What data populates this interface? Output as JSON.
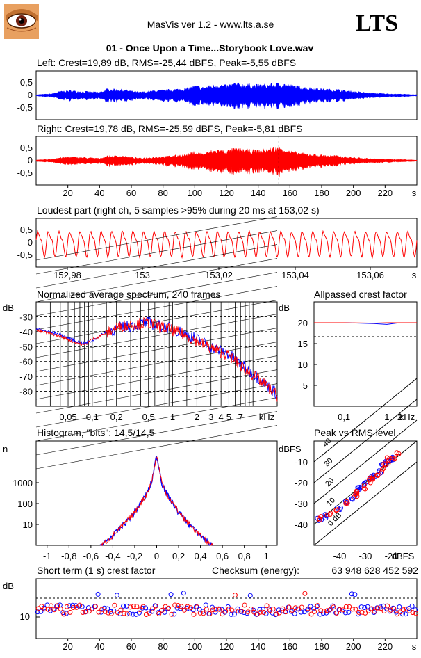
{
  "header": {
    "app_title": "MasVis ver 1.2 - www.lts.a.se",
    "logo_text": "LTS",
    "file_title": "01 - Once Upon a Time...Storybook Love.wav",
    "avatar_icon": "eye-avatar-icon"
  },
  "colors": {
    "left": "#0000ff",
    "right": "#ff0000",
    "axis": "#000000"
  },
  "panels": {
    "left": {
      "title": "Left: Crest=19,89 dB, RMS=-25,44 dBFS, Peak=-5,55 dBFS",
      "yticks": [
        "0,5",
        "0",
        "-0,5"
      ]
    },
    "right": {
      "title": "Right: Crest=19,78 dB, RMS=-25,59 dBFS, Peak=-5,81 dBFS",
      "yticks": [
        "0,5",
        "0",
        "-0,5"
      ],
      "xticks": [
        "20",
        "40",
        "60",
        "80",
        "100",
        "120",
        "140",
        "160",
        "180",
        "200",
        "220",
        "s"
      ]
    },
    "loudest": {
      "title": "Loudest part (right ch, 5 samples >95% during 20 ms at 153,02 s)",
      "yticks": [
        "0,5",
        "0",
        "-0,5"
      ],
      "xticks": [
        "152,98",
        "153",
        "153,02",
        "153,04",
        "153,06",
        "s"
      ]
    },
    "spectrum": {
      "title": "Normalized average spectrum, 240 frames",
      "ylabel": "dB",
      "yticks": [
        "-30",
        "-40",
        "-50",
        "-60",
        "-70",
        "-80"
      ],
      "xticks": [
        "0,05",
        "0,1",
        "0,2",
        "0,5",
        "1",
        "2",
        "3",
        "4",
        "5",
        "7",
        "kHz"
      ]
    },
    "allpass": {
      "title": "Allpassed crest factor",
      "ylabel": "dB",
      "yticks": [
        "20",
        "15",
        "10",
        "5"
      ],
      "xticks": [
        "0,1",
        "1",
        "2",
        "kHz"
      ]
    },
    "histogram": {
      "title": "Histogram, \"bits\": 14,5/14,5",
      "ylabel": "n",
      "yticks": [
        "1000",
        "100",
        "10"
      ],
      "xticks": [
        "-1",
        "-0,8",
        "-0,6",
        "-0,4",
        "-0,2",
        "0",
        "0,2",
        "0,4",
        "0,6",
        "0,8",
        "1"
      ]
    },
    "peakrms": {
      "title": "Peak vs RMS level",
      "ylabel": "dBFS",
      "yticks": [
        "-10",
        "-20",
        "-30",
        "-40"
      ],
      "xticks": [
        "-40",
        "-30",
        "-20",
        "dBFS"
      ],
      "diag_labels": [
        "40",
        "30",
        "20",
        "10",
        "0 dB"
      ]
    },
    "shortcrest": {
      "title": "Short term (1 s) crest factor",
      "checksum_label": "Checksum (energy):",
      "checksum_value": "63 948 628 452 592",
      "ylabel": "dB",
      "yticks": [
        "10"
      ],
      "xticks": [
        "20",
        "40",
        "60",
        "80",
        "100",
        "120",
        "140",
        "160",
        "180",
        "200",
        "220",
        "s"
      ]
    }
  },
  "chart_data": [
    {
      "type": "line",
      "title": "Left: Crest=19,89 dB, RMS=-25,44 dBFS, Peak=-5,55 dBFS",
      "xlim": [
        0,
        240
      ],
      "ylim": [
        -1,
        1
      ],
      "envelope_series": [
        {
          "name": "left",
          "t": [
            0,
            10,
            15,
            20,
            30,
            40,
            45,
            55,
            65,
            75,
            85,
            95,
            100,
            105,
            110,
            115,
            120,
            125,
            130,
            140,
            150,
            155,
            160,
            165,
            170,
            180,
            190,
            200,
            210,
            220,
            230,
            240
          ],
          "amp": [
            0.02,
            0.05,
            0.12,
            0.15,
            0.12,
            0.1,
            0.2,
            0.18,
            0.1,
            0.15,
            0.18,
            0.22,
            0.3,
            0.25,
            0.3,
            0.35,
            0.3,
            0.38,
            0.35,
            0.32,
            0.36,
            0.38,
            0.32,
            0.28,
            0.25,
            0.2,
            0.18,
            0.12,
            0.08,
            0.05,
            0.04,
            0.02
          ]
        }
      ]
    },
    {
      "type": "line",
      "title": "Right: Crest=19,78 dB, RMS=-25,59 dBFS, Peak=-5,81 dBFS",
      "xlim": [
        0,
        240
      ],
      "ylim": [
        -1,
        1
      ],
      "marker_x": 153.02,
      "envelope_series": [
        {
          "name": "right",
          "t": [
            0,
            10,
            15,
            20,
            30,
            40,
            45,
            55,
            65,
            75,
            85,
            95,
            100,
            105,
            110,
            115,
            120,
            125,
            130,
            140,
            150,
            155,
            160,
            165,
            170,
            180,
            190,
            200,
            210,
            220,
            230,
            240
          ],
          "amp": [
            0.02,
            0.05,
            0.1,
            0.12,
            0.1,
            0.08,
            0.15,
            0.15,
            0.08,
            0.12,
            0.15,
            0.2,
            0.28,
            0.22,
            0.3,
            0.35,
            0.3,
            0.38,
            0.35,
            0.32,
            0.4,
            0.42,
            0.3,
            0.25,
            0.22,
            0.18,
            0.15,
            0.1,
            0.07,
            0.05,
            0.04,
            0.02
          ]
        }
      ]
    },
    {
      "type": "line",
      "title": "Loudest part (right ch, 5 samples >95% during 20 ms at 153,02 s)",
      "xlim": [
        152.97,
        153.07
      ],
      "ylim": [
        -1,
        1
      ],
      "oscillation": {
        "amplitude": 0.3,
        "cycles": 36
      }
    },
    {
      "type": "line",
      "title": "Normalized average spectrum, 240 frames",
      "ylabel": "dB",
      "ylim": [
        -90,
        -20
      ],
      "x_scale": "log",
      "xlim_khz": [
        0.02,
        20
      ],
      "series": [
        {
          "name": "left",
          "x_khz": [
            0.02,
            0.04,
            0.06,
            0.08,
            0.1,
            0.15,
            0.2,
            0.3,
            0.5,
            0.7,
            1,
            1.5,
            2,
            3,
            5,
            7,
            10,
            15,
            20
          ],
          "y": [
            -38,
            -42,
            -46,
            -48,
            -46,
            -40,
            -38,
            -36,
            -34,
            -36,
            -38,
            -42,
            -45,
            -50,
            -55,
            -62,
            -68,
            -76,
            -82
          ]
        },
        {
          "name": "right",
          "x_khz": [
            0.02,
            0.04,
            0.06,
            0.08,
            0.1,
            0.15,
            0.2,
            0.3,
            0.5,
            0.7,
            1,
            1.5,
            2,
            3,
            5,
            7,
            10,
            15,
            20
          ],
          "y": [
            -39,
            -43,
            -47,
            -49,
            -45,
            -41,
            -37,
            -35,
            -34,
            -37,
            -39,
            -43,
            -46,
            -51,
            -56,
            -63,
            -69,
            -77,
            -83
          ]
        }
      ]
    },
    {
      "type": "line",
      "title": "Allpassed crest factor",
      "ylabel": "dB",
      "ylim": [
        0,
        25
      ],
      "x_scale": "log",
      "series": [
        {
          "name": "left",
          "x_khz": [
            0.02,
            0.1,
            0.5,
            1,
            2,
            5
          ],
          "y": [
            20,
            20,
            19.8,
            19.6,
            20,
            20
          ]
        },
        {
          "name": "right",
          "x_khz": [
            0.02,
            0.1,
            0.5,
            1,
            2,
            5
          ],
          "y": [
            20,
            20,
            19.9,
            20,
            20,
            20
          ]
        }
      ]
    },
    {
      "type": "line",
      "title": "Histogram, \"bits\": 14,5/14,5",
      "ylabel": "n",
      "y_scale": "log",
      "xlim": [
        -1.1,
        1.1
      ],
      "series": [
        {
          "name": "left",
          "x": [
            -0.5,
            -0.4,
            -0.3,
            -0.2,
            -0.1,
            -0.05,
            0,
            0.05,
            0.1,
            0.2,
            0.3,
            0.4,
            0.5
          ],
          "y": [
            1,
            3,
            10,
            40,
            250,
            900,
            20000,
            900,
            250,
            40,
            10,
            3,
            1
          ]
        }
      ]
    },
    {
      "type": "scatter",
      "title": "Peak vs RMS level",
      "xlabel": "dBFS",
      "ylabel": "dBFS",
      "xlim": [
        -50,
        -10
      ],
      "ylim": [
        -50,
        0
      ],
      "series": [
        {
          "name": "left",
          "points": [
            [
              -48,
              -38
            ],
            [
              -45,
              -36
            ],
            [
              -40,
              -32
            ],
            [
              -38,
              -29
            ],
            [
              -35,
              -27
            ],
            [
              -33,
              -24
            ],
            [
              -32,
              -23
            ],
            [
              -30,
              -20
            ],
            [
              -28,
              -18
            ],
            [
              -27,
              -17
            ],
            [
              -25,
              -15
            ],
            [
              -23,
              -12
            ],
            [
              -22,
              -10
            ],
            [
              -20,
              -9
            ],
            [
              -19,
              -8
            ]
          ]
        },
        {
          "name": "right",
          "points": [
            [
              -47,
              -37
            ],
            [
              -44,
              -35
            ],
            [
              -41,
              -33
            ],
            [
              -37,
              -29
            ],
            [
              -34,
              -26
            ],
            [
              -33,
              -25
            ],
            [
              -31,
              -22
            ],
            [
              -29,
              -19
            ],
            [
              -27,
              -18
            ],
            [
              -26,
              -16
            ],
            [
              -24,
              -14
            ],
            [
              -22,
              -11
            ],
            [
              -21,
              -9
            ],
            [
              -19,
              -8
            ],
            [
              -18,
              -6
            ]
          ]
        }
      ]
    },
    {
      "type": "scatter",
      "title": "Short term (1 s) crest factor",
      "ylabel": "dB",
      "xlim": [
        0,
        240
      ],
      "ylim": [
        0,
        25
      ],
      "reference_line_db": 20,
      "series": [
        {
          "name": "left",
          "mean": 12,
          "spread": 2
        },
        {
          "name": "right",
          "mean": 12,
          "spread": 2
        }
      ]
    }
  ]
}
